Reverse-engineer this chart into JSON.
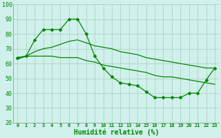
{
  "xlabel": "Humidité relative (%)",
  "x_values": [
    0,
    1,
    2,
    3,
    4,
    5,
    6,
    7,
    8,
    9,
    10,
    11,
    12,
    13,
    14,
    15,
    16,
    17,
    18,
    19,
    20,
    21,
    22,
    23
  ],
  "line_markers": [
    64,
    65,
    76,
    83,
    83,
    83,
    90,
    90,
    80,
    65,
    57,
    51,
    47,
    46,
    45,
    41,
    37,
    37,
    37,
    37,
    40,
    40,
    49,
    57
  ],
  "line_smooth1": [
    63,
    65,
    68,
    70,
    71,
    73,
    75,
    76,
    74,
    72,
    71,
    70,
    68,
    67,
    66,
    64,
    63,
    62,
    61,
    60,
    59,
    58,
    57,
    57
  ],
  "line_smooth2": [
    64,
    65,
    65,
    65,
    65,
    64,
    64,
    64,
    62,
    61,
    59,
    58,
    57,
    56,
    55,
    54,
    52,
    51,
    51,
    50,
    49,
    48,
    47,
    46
  ],
  "background_color": "#cff0eb",
  "grid_color": "#aaccbb",
  "line_color": "#008800",
  "marker_color": "#006600",
  "ylim": [
    20,
    100
  ],
  "yticks": [
    20,
    30,
    40,
    50,
    60,
    70,
    80,
    90,
    100
  ]
}
